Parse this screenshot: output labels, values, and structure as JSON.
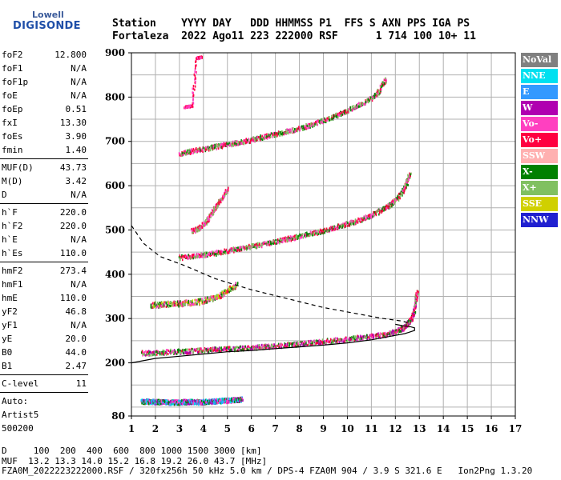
{
  "logo": {
    "line1": "Lowell",
    "line2": "DIGISONDE"
  },
  "header": {
    "line1": "Station    YYYY DAY   DDD HHMMSS P1  FFS S AXN PPS IGA PS",
    "line2": "Fortaleza  2022 Ago11 223 222000 RSF      1 714 100 10+ 11"
  },
  "params": {
    "group1": [
      {
        "name": "foF2",
        "value": "12.800"
      },
      {
        "name": "foF1",
        "value": "N/A"
      },
      {
        "name": "foF1p",
        "value": "N/A"
      },
      {
        "name": "foE",
        "value": "N/A"
      },
      {
        "name": "foEp",
        "value": "0.51"
      },
      {
        "name": "fxI",
        "value": "13.30"
      },
      {
        "name": "foEs",
        "value": "3.90"
      },
      {
        "name": "fmin",
        "value": "1.40"
      }
    ],
    "group2": [
      {
        "name": "MUF(D)",
        "value": "43.73"
      },
      {
        "name": "M(D)",
        "value": "3.42"
      },
      {
        "name": "D",
        "value": "N/A"
      }
    ],
    "group3": [
      {
        "name": "h`F",
        "value": "220.0"
      },
      {
        "name": "h`F2",
        "value": "220.0"
      },
      {
        "name": "h`E",
        "value": "N/A"
      },
      {
        "name": "h`Es",
        "value": "110.0"
      }
    ],
    "group4": [
      {
        "name": "hmF2",
        "value": "273.4"
      },
      {
        "name": "hmF1",
        "value": "N/A"
      },
      {
        "name": "hmE",
        "value": "110.0"
      },
      {
        "name": "yF2",
        "value": "46.8"
      },
      {
        "name": "yF1",
        "value": "N/A"
      },
      {
        "name": "yE",
        "value": "20.0"
      },
      {
        "name": "B0",
        "value": "44.0"
      },
      {
        "name": "B1",
        "value": "2.47"
      }
    ],
    "group5": [
      {
        "name": "C-level",
        "value": "11"
      }
    ],
    "auto_lines": [
      "Auto:",
      "Artist5",
      "500200"
    ]
  },
  "legend": [
    {
      "label": "NoVal",
      "color": "#808080"
    },
    {
      "label": "NNE",
      "color": "#00e0f0"
    },
    {
      "label": "E",
      "color": "#3399ff"
    },
    {
      "label": "W",
      "color": "#b000b0"
    },
    {
      "label": "Vo-",
      "color": "#ff40c0"
    },
    {
      "label": "Vo+",
      "color": "#ff0040"
    },
    {
      "label": "SSW",
      "color": "#ffb0b0"
    },
    {
      "label": "X-",
      "color": "#008000"
    },
    {
      "label": "X+",
      "color": "#80c060"
    },
    {
      "label": "SSE",
      "color": "#d0d000"
    },
    {
      "label": "NNW",
      "color": "#2020d0"
    }
  ],
  "footer": {
    "line1": "D     100  200  400  600  800 1000 1500 3000 [km]",
    "line2": "MUF  13.2 13.3 14.0 15.2 16.8 19.2 26.0 43.7 [MHz]",
    "line3": "FZA0M_2022223222000.RSF / 320fx256h 50 kHz 5.0 km / DPS-4 FZA0M 904 / 3.9 S 321.6 E   Ion2Png 1.3.20"
  },
  "chart_data": {
    "type": "scatter",
    "xlim": [
      1,
      17
    ],
    "ylim": [
      80,
      900
    ],
    "xticks": [
      1,
      2,
      3,
      4,
      5,
      6,
      7,
      8,
      9,
      10,
      11,
      12,
      13,
      14,
      15,
      16,
      17
    ],
    "yticks": [
      80,
      200,
      300,
      400,
      500,
      600,
      700,
      800,
      900
    ],
    "grid": true,
    "legend_position": "right",
    "traces": [
      {
        "name": "E",
        "x": [
          1.4,
          1.6,
          1.8,
          2.0,
          2.2,
          2.4,
          2.6,
          2.8,
          3.0,
          3.2,
          3.4,
          3.6,
          3.8,
          4.0,
          4.2,
          4.4,
          4.6,
          4.8,
          5.0,
          5.2,
          5.4,
          5.6
        ],
        "y": [
          115,
          115,
          114,
          114,
          114,
          113,
          113,
          113,
          113,
          114,
          114,
          114,
          113,
          114,
          115,
          115,
          116,
          117,
          117,
          118,
          119,
          120
        ],
        "colors": [
          "#3399ff",
          "#00e0f0",
          "#b000b0",
          "#ff40c0",
          "#008000"
        ],
        "spread": 10
      },
      {
        "name": "F_1hop",
        "x": [
          1.4,
          2.0,
          2.6,
          3.2,
          3.8,
          4.4,
          5.0,
          5.6,
          6.2,
          6.8,
          7.4,
          8.0,
          8.6,
          9.2,
          9.8,
          10.4,
          11.0,
          11.6,
          12.0,
          12.3,
          12.5,
          12.7,
          12.8,
          12.9
        ],
        "y": [
          224,
          225,
          227,
          228,
          230,
          232,
          233,
          235,
          237,
          240,
          242,
          245,
          248,
          252,
          255,
          258,
          262,
          266,
          272,
          280,
          290,
          305,
          330,
          365
        ],
        "colors": [
          "#ff0040",
          "#ff40c0",
          "#80c060",
          "#008000",
          "#b000b0"
        ],
        "spread": 10
      },
      {
        "name": "Es_2hop",
        "x": [
          1.8,
          2.2,
          2.6,
          3.0,
          3.4,
          3.8,
          4.2,
          4.6,
          5.0,
          5.4
        ],
        "y": [
          333,
          334,
          335,
          336,
          338,
          340,
          345,
          352,
          365,
          380
        ],
        "colors": [
          "#ff0040",
          "#80c060",
          "#008000",
          "#d0d000",
          "#ff40c0"
        ],
        "spread": 12
      },
      {
        "name": "F_2hop",
        "x": [
          3.0,
          3.5,
          4.0,
          4.5,
          5.0,
          5.5,
          6.0,
          6.5,
          7.0,
          7.5,
          8.0,
          8.5,
          9.0,
          9.5,
          10.0,
          10.5,
          11.0,
          11.5,
          11.8,
          12.1,
          12.4,
          12.6
        ],
        "y": [
          440,
          443,
          446,
          450,
          455,
          460,
          465,
          470,
          476,
          482,
          488,
          494,
          500,
          508,
          516,
          525,
          535,
          550,
          560,
          575,
          600,
          630
        ],
        "colors": [
          "#ff0040",
          "#ff40c0",
          "#80c060",
          "#008000"
        ],
        "spread": 10
      },
      {
        "name": "Es_3hop",
        "x": [
          3.5,
          3.8,
          4.1,
          4.4,
          4.7,
          5.0
        ],
        "y": [
          500,
          505,
          520,
          545,
          570,
          595
        ],
        "colors": [
          "#80c060",
          "#ff0040",
          "#ff40c0"
        ],
        "spread": 10
      },
      {
        "name": "F_3hop",
        "x": [
          3.0,
          3.5,
          4.0,
          4.5,
          5.0,
          5.5,
          6.0,
          6.5,
          7.0,
          7.5,
          8.0,
          8.5,
          9.0,
          9.5,
          10.0,
          10.5,
          11.0,
          11.3,
          11.6
        ],
        "y": [
          675,
          680,
          685,
          690,
          695,
          700,
          706,
          712,
          718,
          725,
          732,
          740,
          750,
          760,
          772,
          785,
          800,
          815,
          845
        ],
        "colors": [
          "#ff0040",
          "#ff40c0",
          "#80c060",
          "#008000"
        ],
        "spread": 10
      },
      {
        "name": "misc_high",
        "x": [
          3.2,
          3.5,
          3.7,
          3.9
        ],
        "y": [
          780,
          782,
          890,
          893
        ],
        "colors": [
          "#ff40c0",
          "#ff0040"
        ],
        "spread": 4
      }
    ],
    "profile_solid": {
      "x": [
        1.0,
        2.0,
        3.0,
        4.0,
        5.0,
        6.0,
        7.0,
        8.0,
        9.0,
        10.0,
        11.0,
        11.8,
        12.4,
        12.8,
        12.8,
        12.6,
        12.3,
        12.0
      ],
      "y": [
        200,
        210,
        215,
        220,
        225,
        228,
        232,
        236,
        240,
        245,
        252,
        260,
        266,
        273,
        279,
        282,
        284,
        287
      ]
    },
    "profile_dashed": {
      "x": [
        1.0,
        1.5,
        2.2,
        3.2,
        4.5,
        6.0,
        7.5,
        9.0,
        10.5,
        11.5,
        12.2,
        12.6
      ],
      "y": [
        510,
        470,
        440,
        420,
        390,
        365,
        345,
        325,
        310,
        300,
        295,
        290
      ]
    }
  }
}
